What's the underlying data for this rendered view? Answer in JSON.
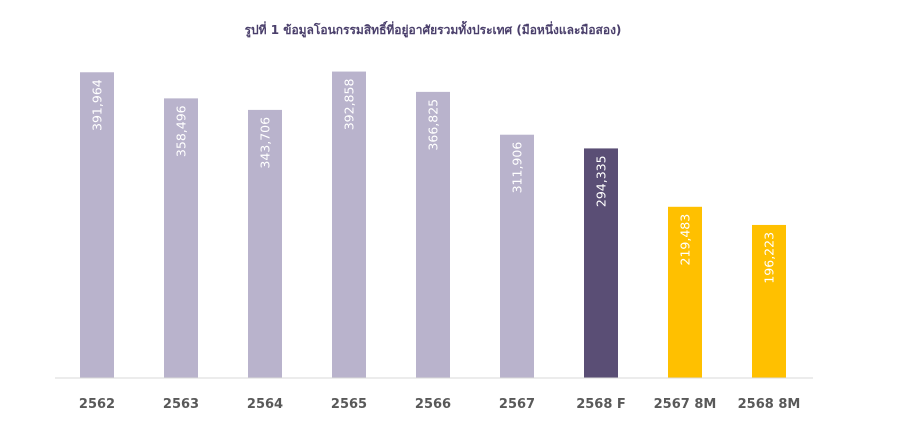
{
  "chart_data": {
    "type": "bar",
    "title": "รูปที่ 1 ข้อมูลโอนกรรมสิทธิ์ที่อยู่อาศัยรวมทั้งประเทศ (มือหนึ่งและมือสอง)",
    "categories": [
      "2562",
      "2563",
      "2564",
      "2565",
      "2566",
      "2567",
      "2568 F",
      "2567 8M",
      "2568 8M"
    ],
    "values": [
      391964,
      358496,
      343706,
      392858,
      366825,
      311906,
      294335,
      219483,
      196223
    ],
    "value_labels": [
      "391,964",
      "358,496",
      "343,706",
      "392,858",
      "366,825",
      "311,906",
      "294,335",
      "219,483",
      "196,223"
    ],
    "bar_colors": [
      "#b9b3cc",
      "#b9b3cc",
      "#b9b3cc",
      "#b9b3cc",
      "#b9b3cc",
      "#b9b3cc",
      "#5a4e75",
      "#ffc000",
      "#ffc000"
    ],
    "axis_color": "#d9d9d9",
    "ylim": [
      0,
      400000
    ],
    "xlabel": "",
    "ylabel": "",
    "grid": false,
    "legend": false
  }
}
